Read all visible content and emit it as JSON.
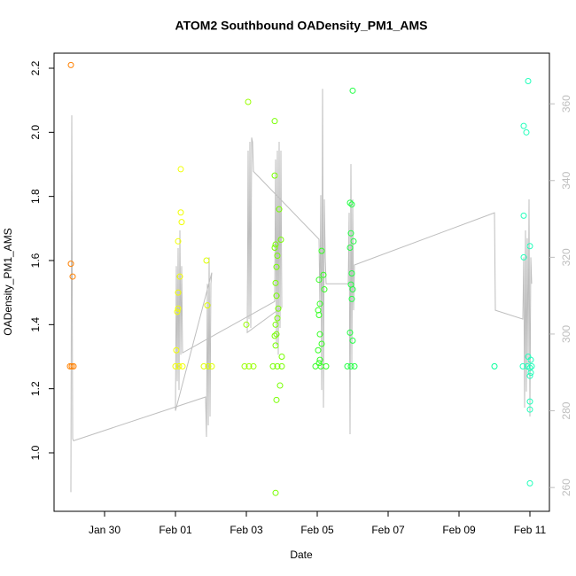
{
  "chart_data": {
    "type": "scatter",
    "title": "ATOM2 Southbound OADensity_PM1_AMS",
    "x_label": "Date",
    "y_label": "OADensity_PM1_AMS",
    "xlim": [
      28.575,
      42.55
    ],
    "ylim": [
      0.8175,
      2.247
    ],
    "y2lim": [
      253.8,
      373.2
    ],
    "xticks": [
      {
        "value": 30,
        "label": "Jan 30"
      },
      {
        "value": 32,
        "label": "Feb 01"
      },
      {
        "value": 34,
        "label": "Feb 03"
      },
      {
        "value": 36,
        "label": "Feb 05"
      },
      {
        "value": 38,
        "label": "Feb 07"
      },
      {
        "value": 40,
        "label": "Feb 09"
      },
      {
        "value": 42,
        "label": "Feb 11"
      }
    ],
    "yticks": [
      {
        "value": 1,
        "label": "1.0"
      },
      1.2,
      1.4,
      1.6,
      1.8,
      {
        "value": 2,
        "label": "2.0"
      },
      2.2
    ],
    "y2ticks": [
      260,
      280,
      300,
      320,
      340,
      360
    ],
    "y2_color": "#bebebe",
    "series": [
      {
        "style": "line",
        "axis": "y2",
        "color": "#bebebe",
        "x": [
          29.05,
          29.075,
          29.1,
          29.125,
          32.85,
          32.875,
          32.9,
          32.925,
          32.95,
          32.975,
          33.0,
          33.025,
          32.0,
          32.025,
          32.05,
          32.075,
          32.1,
          32.125,
          32.15,
          32.175,
          32.2,
          34.8,
          34.825,
          34.85,
          34.875,
          34.9,
          34.925,
          34.95,
          34.975,
          35.0,
          34.025,
          34.05,
          34.075,
          34.1,
          34.125,
          34.15,
          34.175,
          34.2,
          36.05,
          36.075,
          36.1,
          36.125,
          36.15,
          36.175,
          36.2,
          36.225,
          36.25,
          36.875,
          36.9,
          36.925,
          36.95,
          36.975,
          37.0,
          37.025,
          37.05,
          41.0,
          41.025,
          41.8,
          41.825,
          41.85,
          41.875,
          41.9,
          41.925,
          41.95,
          41.975,
          42.0,
          42.025,
          42.05
        ],
        "values": [
          258.8,
          357.0,
          272.7,
          272.2,
          283.6,
          273.2,
          313.1,
          276.2,
          320.0,
          278.5,
          313.1,
          316,
          280,
          317.7,
          287.7,
          322.4,
          285.4,
          327.0,
          294.6,
          317.7,
          295.1,
          308.5,
          345.5,
          297.0,
          347.8,
          294.6,
          350.1,
          301.6,
          347.8,
          307,
          300.4,
          347.8,
          303.9,
          350.1,
          301.6,
          351.2,
          350,
          342.4,
          324.7,
          307.3,
          336.2,
          285.4,
          363.9,
          280.8,
          335.1,
          320,
          313.1,
          313.1,
          331.6,
          273.9,
          344.3,
          292.3,
          335.1,
          306.2,
          318,
          331.6,
          306.2,
          303.9,
          320,
          280.8,
          327,
          285,
          325,
          292,
          335.1,
          278.5,
          320,
          313.1
        ]
      },
      {
        "style": "points",
        "color": "#ff8000",
        "x": [
          29.025,
          29.05,
          29.075,
          29.05,
          29.1,
          29.125
        ],
        "values": [
          1.27,
          2.21,
          1.27,
          1.59,
          1.55,
          1.27
        ]
      },
      {
        "style": "points",
        "color": "#f2ff00",
        "x": [
          32.0,
          32.1,
          32.2,
          32.15,
          32.15,
          32.175,
          32.075,
          32.125,
          32.075,
          32.075,
          32.05,
          32.025
        ],
        "values": [
          1.27,
          1.27,
          1.27,
          1.885,
          1.75,
          1.72,
          1.66,
          1.55,
          1.5,
          1.45,
          1.44,
          1.32
        ]
      },
      {
        "style": "points",
        "color": "#ddff00",
        "x": [
          32.8,
          32.925,
          33.025,
          32.875,
          32.9
        ],
        "values": [
          1.27,
          1.27,
          1.27,
          1.6,
          1.46
        ]
      },
      {
        "style": "points",
        "color": "#99ff00",
        "x": [
          33.95,
          34.075,
          34.2,
          34.05,
          34.0
        ],
        "values": [
          1.27,
          1.27,
          1.27,
          2.095,
          1.4
        ]
      },
      {
        "style": "points",
        "color": "#77ff00",
        "x": [
          34.75,
          34.875,
          35.0,
          34.8,
          34.8,
          34.925,
          34.975,
          34.825,
          34.8,
          34.875,
          34.85,
          34.825,
          34.85,
          34.9,
          34.875,
          34.825,
          34.85,
          34.8,
          34.825,
          35.0,
          34.95,
          34.85,
          34.825
        ],
        "values": [
          1.27,
          1.27,
          1.27,
          2.035,
          1.865,
          1.76,
          1.665,
          1.65,
          1.64,
          1.615,
          1.58,
          1.53,
          1.49,
          1.45,
          1.42,
          1.4,
          1.37,
          1.365,
          1.335,
          1.3,
          1.21,
          1.165,
          0.875
        ]
      },
      {
        "style": "points",
        "color": "#33ff22",
        "x": [
          35.95,
          36.1,
          36.25,
          36.125,
          36.175,
          36.2,
          36.05,
          36.075,
          36.025,
          36.05,
          36.075,
          36.125,
          36.025,
          36.075,
          36.05
        ],
        "values": [
          1.27,
          1.27,
          1.27,
          1.63,
          1.555,
          1.51,
          1.54,
          1.465,
          1.445,
          1.43,
          1.37,
          1.34,
          1.32,
          1.29,
          1.28
        ]
      },
      {
        "style": "points",
        "color": "#22ff44",
        "x": [
          36.85,
          36.95,
          37.05,
          37.0,
          36.925,
          36.975,
          36.95,
          37.025,
          36.925,
          36.975,
          36.95,
          37.0,
          36.975,
          36.925,
          37.0
        ],
        "values": [
          1.27,
          1.27,
          1.27,
          2.13,
          1.78,
          1.775,
          1.685,
          1.66,
          1.64,
          1.56,
          1.525,
          1.51,
          1.48,
          1.375,
          1.35
        ]
      },
      {
        "style": "points",
        "color": "#00ff99",
        "x": [
          41.0
        ],
        "values": [
          1.27
        ]
      },
      {
        "style": "points",
        "color": "#22ffbb",
        "x": [
          41.8,
          41.925,
          42.05,
          41.95,
          41.825,
          41.9,
          41.825,
          42.0,
          41.825,
          41.95,
          42.025,
          42.0,
          42.025,
          42.0,
          42.0,
          42.0,
          42.0
        ],
        "values": [
          1.27,
          1.27,
          1.27,
          2.16,
          2.02,
          2.0,
          1.74,
          1.645,
          1.61,
          1.3,
          1.29,
          1.265,
          1.25,
          1.24,
          1.16,
          1.135,
          0.905
        ]
      }
    ]
  }
}
